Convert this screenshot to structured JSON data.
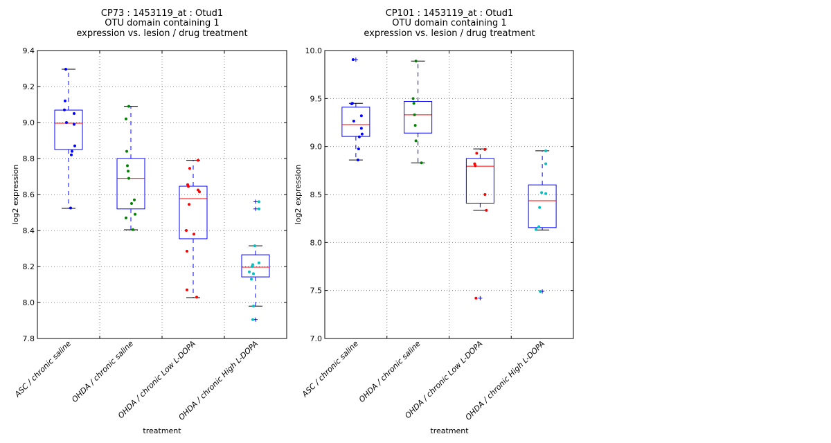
{
  "chart_data": [
    {
      "type": "box",
      "title_lines": [
        "CP73 : 1453119_at : Otud1",
        "OTU domain containing 1",
        "expression vs. lesion / drug treatment"
      ],
      "xlabel": "treatment",
      "ylabel": "log2 expression",
      "ylim": [
        7.8,
        9.4
      ],
      "yticks": [
        7.8,
        8.0,
        8.2,
        8.4,
        8.6,
        8.8,
        9.0,
        9.2,
        9.4
      ],
      "ytick_labels": [
        "7.8",
        "8.0",
        "8.2",
        "8.4",
        "8.6",
        "8.8",
        "9.0",
        "9.2",
        "9.4"
      ],
      "grid": true,
      "categories": [
        "ASC / chronic saline",
        "OHDA / chronic saline",
        "OHDA / chronic Low L-DOPA",
        "OHDA / chronic High L-DOPA"
      ],
      "boxes": [
        {
          "q1": 8.85,
          "median": 8.996,
          "q3": 9.069,
          "whisker_low": 8.523,
          "whisker_high": 9.296,
          "outliers": []
        },
        {
          "q1": 8.52,
          "median": 8.69,
          "q3": 8.8,
          "whisker_low": 8.404,
          "whisker_high": 9.09,
          "outliers": []
        },
        {
          "q1": 8.354,
          "median": 8.577,
          "q3": 8.646,
          "whisker_low": 8.027,
          "whisker_high": 8.79,
          "outliers": []
        },
        {
          "q1": 8.142,
          "median": 8.196,
          "q3": 8.265,
          "whisker_low": 7.98,
          "whisker_high": 8.315,
          "outliers": [
            8.56,
            8.52,
            7.905
          ]
        }
      ],
      "points": [
        [
          9.296,
          9.12,
          9.07,
          9.05,
          9.0,
          8.99,
          8.87,
          8.84,
          8.82,
          8.525
        ],
        [
          9.09,
          9.02,
          8.84,
          8.76,
          8.73,
          8.69,
          8.57,
          8.55,
          8.49,
          8.47,
          8.405
        ],
        [
          8.79,
          8.745,
          8.655,
          8.645,
          8.625,
          8.615,
          8.545,
          8.4,
          8.38,
          8.285,
          8.07,
          8.03
        ],
        [
          8.56,
          8.52,
          8.315,
          8.22,
          8.21,
          8.2,
          8.17,
          8.16,
          8.13,
          7.98,
          7.905
        ]
      ],
      "point_colors": [
        "#0000ff",
        "#008000",
        "#ff0000",
        "#00bfbf"
      ]
    },
    {
      "type": "box",
      "title_lines": [
        "CP101 : 1453119_at : Otud1",
        "OTU domain containing 1",
        "expression vs. lesion / drug treatment"
      ],
      "xlabel": "treatment",
      "ylabel": "log2 expression",
      "ylim": [
        7.0,
        10.0
      ],
      "yticks": [
        7.0,
        7.5,
        8.0,
        8.5,
        9.0,
        9.5,
        10.0
      ],
      "ytick_labels": [
        "7.0",
        "7.5",
        "8.0",
        "8.5",
        "9.0",
        "9.5",
        "10.0"
      ],
      "grid": true,
      "categories": [
        "ASC / chronic saline",
        "OHDA / chronic saline",
        "OHDA / chronic Low L-DOPA",
        "OHDA / chronic High L-DOPA"
      ],
      "boxes": [
        {
          "q1": 9.105,
          "median": 9.228,
          "q3": 9.41,
          "whisker_low": 8.86,
          "whisker_high": 9.45,
          "outliers": [
            9.905
          ]
        },
        {
          "q1": 9.14,
          "median": 9.33,
          "q3": 9.47,
          "whisker_low": 8.83,
          "whisker_high": 9.89,
          "outliers": []
        },
        {
          "q1": 8.41,
          "median": 8.795,
          "q3": 8.875,
          "whisker_low": 8.335,
          "whisker_high": 8.975,
          "outliers": [
            7.42
          ]
        },
        {
          "q1": 8.155,
          "median": 8.435,
          "q3": 8.6,
          "whisker_low": 8.13,
          "whisker_high": 8.955,
          "outliers": [
            7.49
          ]
        }
      ],
      "points": [
        [
          9.905,
          9.45,
          9.445,
          9.32,
          9.265,
          9.19,
          9.13,
          9.1,
          8.975,
          8.86
        ],
        [
          9.89,
          9.5,
          9.45,
          9.33,
          9.22,
          9.06,
          8.83
        ],
        [
          8.97,
          8.93,
          8.82,
          8.8,
          8.5,
          8.335,
          7.42
        ],
        [
          8.955,
          8.82,
          8.52,
          8.51,
          8.365,
          8.165,
          8.135,
          7.49
        ]
      ],
      "point_colors": [
        "#0000ff",
        "#008000",
        "#ff0000",
        "#00bfbf"
      ]
    }
  ],
  "colors": {
    "box": "#0000ff",
    "median": "#ff0000",
    "whisker_cap": "#000000",
    "grid": "#808080"
  }
}
